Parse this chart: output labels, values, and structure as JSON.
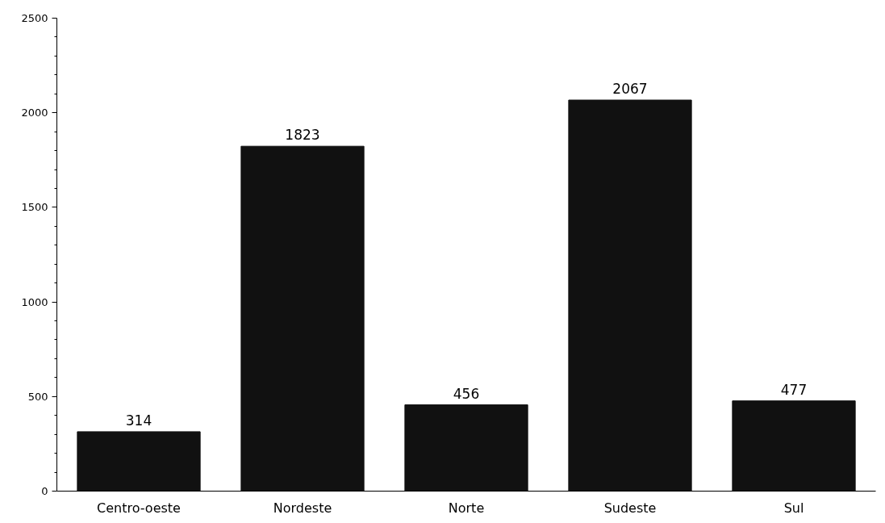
{
  "chart_data": {
    "type": "bar",
    "categories": [
      "Centro-oeste",
      "Nordeste",
      "Norte",
      "Sudeste",
      "Sul"
    ],
    "values": [
      314,
      1823,
      456,
      2067,
      477
    ],
    "color": "#111111",
    "ylim": [
      0,
      2500
    ],
    "yticks": [
      0,
      500,
      1000,
      1500,
      2000,
      2500
    ],
    "data_labels": true,
    "grid": false
  }
}
